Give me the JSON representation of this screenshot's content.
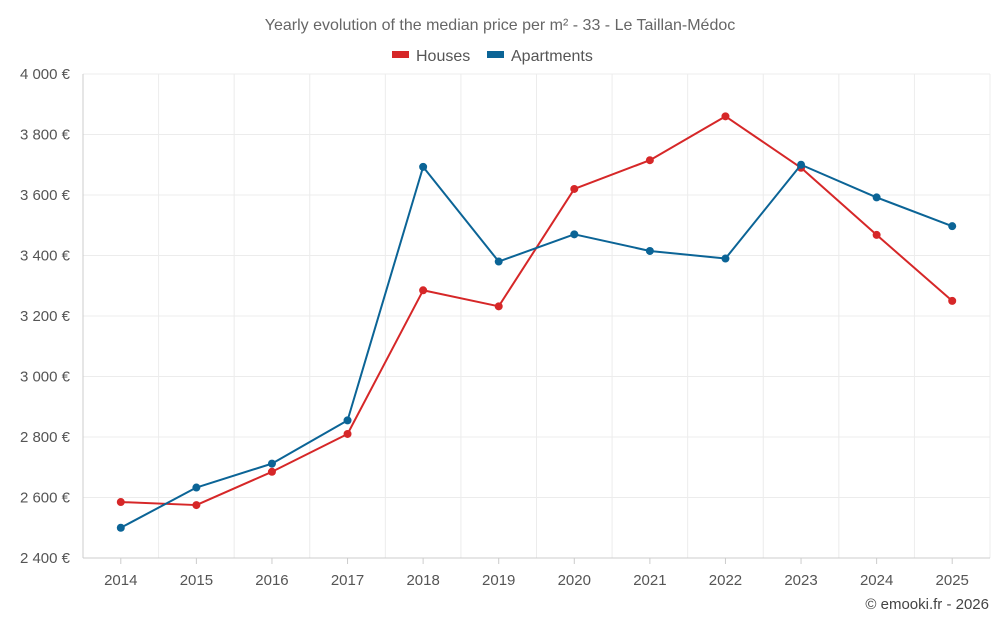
{
  "chart_data": {
    "type": "line",
    "title": "Yearly evolution of the median price per m² - 33 - Le Taillan-Médoc",
    "categories": [
      "2014",
      "2015",
      "2016",
      "2017",
      "2018",
      "2019",
      "2020",
      "2021",
      "2022",
      "2023",
      "2024",
      "2025"
    ],
    "series": [
      {
        "name": "Houses",
        "color": "#d62728",
        "values": [
          2585,
          2575,
          2685,
          2810,
          3285,
          3232,
          3620,
          3715,
          3860,
          3690,
          3468,
          3250
        ]
      },
      {
        "name": "Apartments",
        "color": "#0b6496",
        "values": [
          2500,
          2633,
          2712,
          2855,
          3693,
          3380,
          3470,
          3415,
          3390,
          3700,
          3592,
          3497
        ]
      }
    ],
    "ylim": [
      2400,
      4000
    ],
    "yticks": [
      2400,
      2600,
      2800,
      3000,
      3200,
      3400,
      3600,
      3800,
      4000
    ],
    "ytick_labels": [
      "2 400 €",
      "2 600 €",
      "2 800 €",
      "3 000 €",
      "3 200 €",
      "3 400 €",
      "3 600 €",
      "3 800 €",
      "4 000 €"
    ],
    "xlabel": "",
    "ylabel": "",
    "legend_position": "top-center",
    "grid": true
  },
  "credit": "© emooki.fr - 2026"
}
